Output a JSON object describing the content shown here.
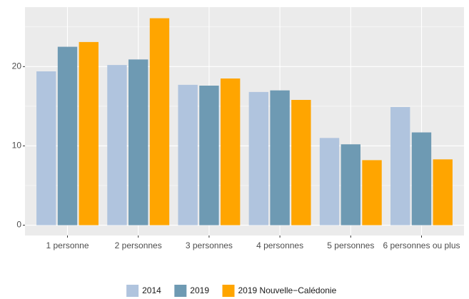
{
  "chart_data": {
    "type": "bar",
    "categories": [
      "1 personne",
      "2 personnes",
      "3 personnes",
      "4 personnes",
      "5 personnes",
      "6 personnes ou plus"
    ],
    "series": [
      {
        "name": "2014",
        "color": "#b0c4de",
        "values": [
          19.4,
          20.2,
          17.7,
          16.8,
          11.0,
          14.9
        ]
      },
      {
        "name": "2019",
        "color": "#6e9ab3",
        "values": [
          22.5,
          20.9,
          17.6,
          17.0,
          10.2,
          11.7
        ]
      },
      {
        "name": "2019 Nouvelle−Calédonie",
        "color": "#ffa500",
        "values": [
          23.1,
          26.1,
          18.5,
          15.8,
          8.2,
          8.3
        ]
      }
    ],
    "ylim": [
      -1.3,
      27.5
    ],
    "yticks": [
      0,
      10,
      20
    ],
    "yminorticks": [
      5,
      15,
      25
    ],
    "grid": true,
    "legend": "bottom"
  }
}
